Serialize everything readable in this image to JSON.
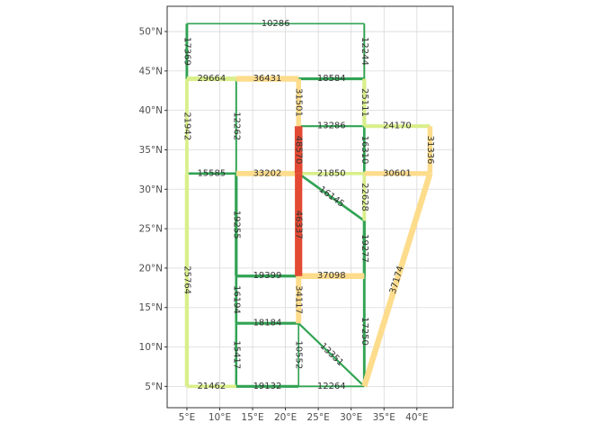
{
  "chart_data": {
    "type": "network-map",
    "projection": "equirectangular",
    "xlim": [
      2.0,
      45.5
    ],
    "ylim": [
      2.3,
      53.2
    ],
    "grid": true,
    "x_ticks": [
      5,
      10,
      15,
      20,
      25,
      30,
      35,
      40
    ],
    "x_tick_labels": [
      "5°E",
      "10°E",
      "15°E",
      "20°E",
      "25°E",
      "30°E",
      "35°E",
      "40°E"
    ],
    "y_ticks": [
      5,
      10,
      15,
      20,
      25,
      30,
      35,
      40,
      45,
      50
    ],
    "y_tick_labels": [
      "5°N",
      "10°N",
      "15°N",
      "20°N",
      "25°N",
      "30°N",
      "35°N",
      "40°N",
      "45°N",
      "50°N"
    ],
    "colors": {
      "low": "#31a354",
      "mid_low": "#d9ef8b",
      "mid_high": "#fddc8c",
      "high": "#e34a33",
      "grid": "#d9d9d9",
      "panel_border": "#333333"
    },
    "edges": [
      {
        "label": "10286",
        "value": 10286,
        "level": "low",
        "path": [
          [
            5,
            51
          ],
          [
            32,
            51
          ]
        ]
      },
      {
        "label": "17369",
        "value": 17369,
        "level": "low",
        "path": [
          [
            5,
            51
          ],
          [
            5,
            44
          ]
        ]
      },
      {
        "label": "12244",
        "value": 12244,
        "level": "low",
        "path": [
          [
            32,
            51
          ],
          [
            32,
            44
          ]
        ]
      },
      {
        "label": "29664",
        "value": 29664,
        "level": "mid_low",
        "path": [
          [
            5,
            44
          ],
          [
            12.5,
            44
          ]
        ]
      },
      {
        "label": "36431",
        "value": 36431,
        "level": "mid_high",
        "path": [
          [
            12.5,
            44
          ],
          [
            22,
            44
          ]
        ]
      },
      {
        "label": "18584",
        "value": 18584,
        "level": "low",
        "path": [
          [
            22,
            44
          ],
          [
            32,
            44
          ]
        ]
      },
      {
        "label": "21942",
        "value": 21942,
        "level": "mid_low",
        "path": [
          [
            5,
            44
          ],
          [
            5,
            32
          ]
        ]
      },
      {
        "label": "12262",
        "value": 12262,
        "level": "low",
        "path": [
          [
            12.5,
            44
          ],
          [
            12.5,
            32
          ]
        ]
      },
      {
        "label": "31501",
        "value": 31501,
        "level": "mid_high",
        "path": [
          [
            22,
            44
          ],
          [
            22,
            38
          ]
        ]
      },
      {
        "label": "25111",
        "value": 25111,
        "level": "mid_low",
        "path": [
          [
            32,
            44
          ],
          [
            32,
            38
          ]
        ]
      },
      {
        "label": "13286",
        "value": 13286,
        "level": "low",
        "path": [
          [
            22,
            38
          ],
          [
            32,
            38
          ]
        ]
      },
      {
        "label": "24170",
        "value": 24170,
        "level": "mid_low",
        "path": [
          [
            32,
            38
          ],
          [
            42,
            38
          ]
        ]
      },
      {
        "label": "48570",
        "value": 48570,
        "level": "high",
        "path": [
          [
            22,
            38
          ],
          [
            22,
            32
          ]
        ]
      },
      {
        "label": "16310",
        "value": 16310,
        "level": "low",
        "path": [
          [
            32,
            38
          ],
          [
            32,
            32
          ]
        ]
      },
      {
        "label": "31336",
        "value": 31336,
        "level": "mid_high",
        "path": [
          [
            42,
            38
          ],
          [
            42,
            32
          ]
        ]
      },
      {
        "label": "15585",
        "value": 15585,
        "level": "low",
        "path": [
          [
            5,
            32
          ],
          [
            12.5,
            32
          ]
        ]
      },
      {
        "label": "33202",
        "value": 33202,
        "level": "mid_high",
        "path": [
          [
            12.5,
            32
          ],
          [
            22,
            32
          ]
        ]
      },
      {
        "label": "21850",
        "value": 21850,
        "level": "mid_low",
        "path": [
          [
            22,
            32
          ],
          [
            32,
            32
          ]
        ]
      },
      {
        "label": "30601",
        "value": 30601,
        "level": "mid_high",
        "path": [
          [
            32,
            32
          ],
          [
            42,
            32
          ]
        ]
      },
      {
        "label": "25764",
        "value": 25764,
        "level": "mid_low",
        "path": [
          [
            5,
            32
          ],
          [
            5,
            5
          ]
        ]
      },
      {
        "label": "19255",
        "value": 19255,
        "level": "low",
        "path": [
          [
            12.5,
            32
          ],
          [
            12.5,
            19
          ]
        ]
      },
      {
        "label": "46337",
        "value": 46337,
        "level": "high",
        "path": [
          [
            22,
            32
          ],
          [
            22,
            19
          ]
        ]
      },
      {
        "label": "16145",
        "value": 16145,
        "level": "low",
        "path": [
          [
            22,
            32
          ],
          [
            32,
            26
          ]
        ]
      },
      {
        "label": "22628",
        "value": 22628,
        "level": "mid_low",
        "path": [
          [
            32,
            32
          ],
          [
            32,
            26
          ]
        ]
      },
      {
        "label": "37174",
        "value": 37174,
        "level": "mid_high",
        "path": [
          [
            42,
            32
          ],
          [
            32,
            5
          ]
        ]
      },
      {
        "label": "19277",
        "value": 19277,
        "level": "low",
        "path": [
          [
            32,
            26
          ],
          [
            32,
            19
          ]
        ]
      },
      {
        "label": "19399",
        "value": 19399,
        "level": "low",
        "path": [
          [
            12.5,
            19
          ],
          [
            22,
            19
          ]
        ]
      },
      {
        "label": "37098",
        "value": 37098,
        "level": "mid_high",
        "path": [
          [
            22,
            19
          ],
          [
            32,
            19
          ]
        ]
      },
      {
        "label": "16194",
        "value": 16194,
        "level": "low",
        "path": [
          [
            12.5,
            19
          ],
          [
            12.5,
            13
          ]
        ]
      },
      {
        "label": "34117",
        "value": 34117,
        "level": "mid_high",
        "path": [
          [
            22,
            19
          ],
          [
            22,
            13
          ]
        ]
      },
      {
        "label": "17250",
        "value": 17250,
        "level": "low",
        "path": [
          [
            32,
            19
          ],
          [
            32,
            5
          ]
        ]
      },
      {
        "label": "18184",
        "value": 18184,
        "level": "low",
        "path": [
          [
            12.5,
            13
          ],
          [
            22,
            13
          ]
        ]
      },
      {
        "label": "15417",
        "value": 15417,
        "level": "low",
        "path": [
          [
            12.5,
            13
          ],
          [
            12.5,
            5
          ]
        ]
      },
      {
        "label": "10552",
        "value": 10552,
        "level": "low",
        "path": [
          [
            22,
            13
          ],
          [
            22,
            5
          ]
        ]
      },
      {
        "label": "13351",
        "value": 13351,
        "level": "low",
        "path": [
          [
            22,
            13
          ],
          [
            32,
            5
          ]
        ]
      },
      {
        "label": "21462",
        "value": 21462,
        "level": "mid_low",
        "path": [
          [
            5,
            5
          ],
          [
            12.5,
            5
          ]
        ]
      },
      {
        "label": "19132",
        "value": 19132,
        "level": "low",
        "path": [
          [
            12.5,
            5
          ],
          [
            22,
            5
          ]
        ]
      },
      {
        "label": "12264",
        "value": 12264,
        "level": "low",
        "path": [
          [
            22,
            5
          ],
          [
            32,
            5
          ]
        ]
      }
    ]
  }
}
